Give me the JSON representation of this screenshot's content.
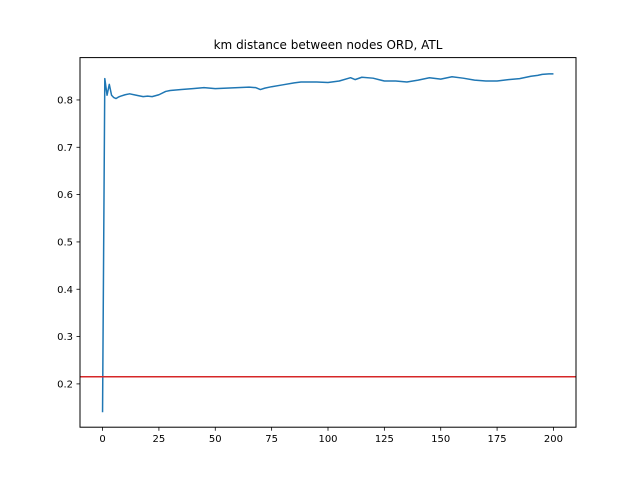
{
  "chart_data": {
    "type": "line",
    "title": "km distance between nodes ORD, ATL",
    "xlabel": "",
    "ylabel": "",
    "xlim": [
      -10,
      210
    ],
    "ylim": [
      0.1085,
      0.8895
    ],
    "xticks": [
      0,
      25,
      50,
      75,
      100,
      125,
      150,
      175,
      200
    ],
    "xtick_labels": [
      "0",
      "25",
      "50",
      "75",
      "100",
      "125",
      "150",
      "175",
      "200"
    ],
    "yticks": [
      0.2,
      0.3,
      0.4,
      0.5,
      0.6,
      0.7,
      0.8
    ],
    "ytick_labels": [
      "0.2",
      "0.3",
      "0.4",
      "0.5",
      "0.6",
      "0.7",
      "0.8"
    ],
    "grid": false,
    "series": [
      {
        "color": "#1f77b4",
        "x": [
          0,
          1,
          2,
          3,
          4,
          5,
          6,
          7,
          8,
          10,
          12,
          15,
          18,
          20,
          22,
          25,
          28,
          30,
          35,
          40,
          45,
          50,
          55,
          60,
          65,
          68,
          70,
          72,
          75,
          80,
          85,
          88,
          90,
          95,
          100,
          105,
          110,
          112,
          115,
          120,
          125,
          130,
          135,
          140,
          145,
          150,
          155,
          160,
          165,
          170,
          175,
          180,
          185,
          190,
          193,
          195,
          198,
          200
        ],
        "y": [
          0.14,
          0.845,
          0.81,
          0.833,
          0.81,
          0.805,
          0.803,
          0.806,
          0.808,
          0.811,
          0.813,
          0.81,
          0.807,
          0.808,
          0.807,
          0.811,
          0.818,
          0.82,
          0.822,
          0.824,
          0.826,
          0.824,
          0.825,
          0.826,
          0.827,
          0.826,
          0.822,
          0.825,
          0.828,
          0.832,
          0.836,
          0.838,
          0.838,
          0.838,
          0.837,
          0.84,
          0.847,
          0.843,
          0.848,
          0.846,
          0.84,
          0.84,
          0.838,
          0.842,
          0.847,
          0.844,
          0.849,
          0.846,
          0.842,
          0.84,
          0.84,
          0.843,
          0.845,
          0.85,
          0.852,
          0.854,
          0.855,
          0.855
        ]
      }
    ],
    "hlines": [
      {
        "y": 0.215,
        "color": "#d62728"
      }
    ]
  }
}
